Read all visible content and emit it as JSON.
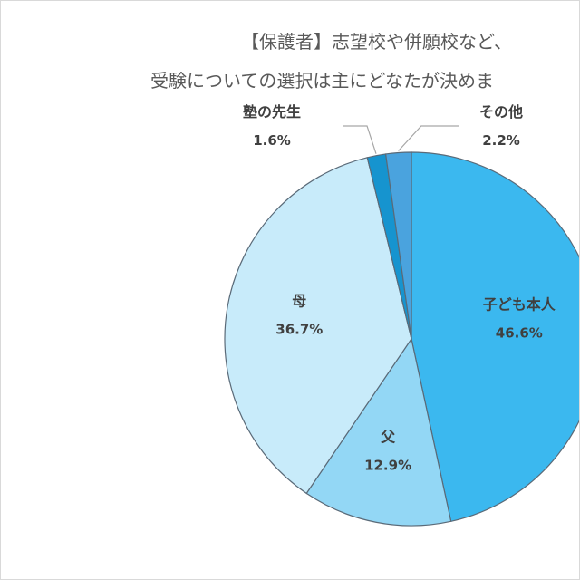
{
  "chart_data": {
    "type": "pie",
    "title_lines": [
      "【保護者】志望校や併願校など、",
      "受験についての選択は主にどなたが決めま"
    ],
    "start_angle_deg": 0,
    "direction": "clockwise",
    "slices": [
      {
        "label": "子ども本人",
        "value": 46.6,
        "display": "46.6%",
        "color": "#3bb8ef"
      },
      {
        "label": "父",
        "value": 12.9,
        "display": "12.9%",
        "color": "#93d7f5"
      },
      {
        "label": "母",
        "value": 36.7,
        "display": "36.7%",
        "color": "#c8ebfa"
      },
      {
        "label": "塾の先生",
        "value": 1.6,
        "display": "1.6%",
        "color": "#1694cf"
      },
      {
        "label": "その他",
        "value": 2.2,
        "display": "2.2%",
        "color": "#4aa3de"
      }
    ],
    "legend": "none",
    "slice_border_color": "#5a6a78",
    "leader_line_color": "#a6a6a6"
  }
}
